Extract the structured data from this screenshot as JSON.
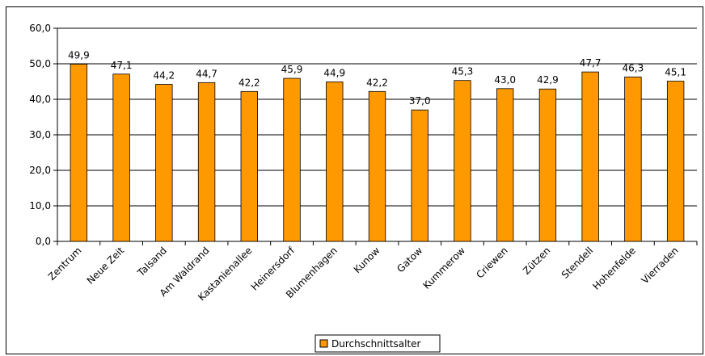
{
  "chart_data": {
    "type": "bar",
    "title": "",
    "xlabel": "",
    "ylabel": "",
    "ylim": [
      0,
      60
    ],
    "yticks": [
      "0,0",
      "10,0",
      "20,0",
      "30,0",
      "40,0",
      "50,0",
      "60,0"
    ],
    "grid": "horizontal",
    "legend_position": "bottom",
    "bar_color": "#FF9900",
    "categories": [
      "Zentrum",
      "Neue Zeit",
      "Talsand",
      "Am Waldrand",
      "Kastanienallee",
      "Heinersdorf",
      "Blumenhagen",
      "Kunow",
      "Gatow",
      "Kummerow",
      "Criewen",
      "Zützen",
      "Stendell",
      "Hohenfelde",
      "Vierraden"
    ],
    "series": [
      {
        "name": "Durchschnittsalter",
        "values": [
          49.9,
          47.1,
          44.2,
          44.7,
          42.2,
          45.9,
          44.9,
          42.2,
          37.0,
          45.3,
          43.0,
          42.9,
          47.7,
          46.3,
          45.1
        ],
        "labels": [
          "49,9",
          "47,1",
          "44,2",
          "44,7",
          "42,2",
          "45,9",
          "44,9",
          "42,2",
          "37,0",
          "45,3",
          "43,0",
          "42,9",
          "47,7",
          "46,3",
          "45,1"
        ]
      }
    ]
  }
}
